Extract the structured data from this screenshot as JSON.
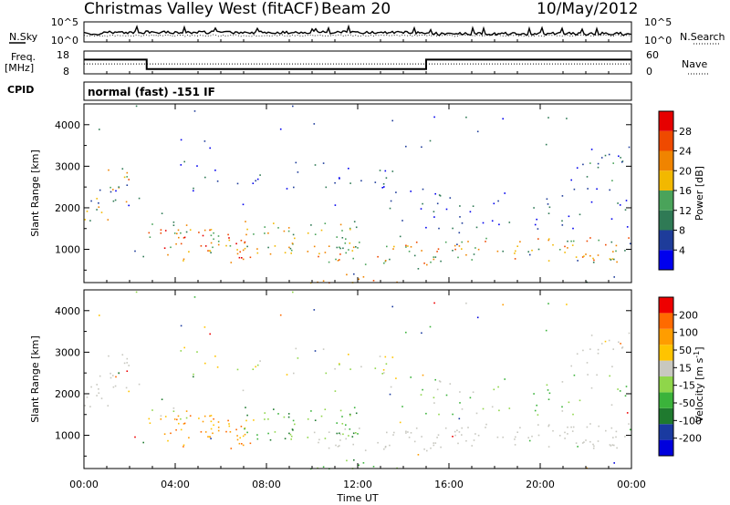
{
  "header": {
    "station": "Christmas Valley West (fitACF)",
    "beam": "Beam 20",
    "date": "10/May/2012"
  },
  "left_labels": {
    "nsky": "N.Sky",
    "freq_line1": "Freq.",
    "freq_line2": "[MHz]",
    "cpid": "CPID"
  },
  "right_labels": {
    "nsearch": "N.Search",
    "nave": "Nave"
  },
  "cpid_text": "normal (fast) -151 IF",
  "colors": {
    "power_scale": [
      "#0000ee",
      "#1e3c9a",
      "#2f7a55",
      "#4aa35a",
      "#f2b800",
      "#f08400",
      "#ef4a00",
      "#e60000"
    ],
    "velocity_scale": [
      "#ee0000",
      "#ff6a00",
      "#ff9d00",
      "#ffc400",
      "#c8c8c0",
      "#8fd64a",
      "#3bb33b",
      "#1f7a2f",
      "#1a3aa0",
      "#0000dd"
    ]
  },
  "chart_data": [
    {
      "type": "line",
      "title": "",
      "series": [
        {
          "name": "N.Sky"
        },
        {
          "name": "N.Search"
        }
      ],
      "ylabel_left": "N.Sky",
      "ylabel_right": "N.Search",
      "y_ticks_left": [
        "10^5",
        "10^0"
      ],
      "y_ticks_right": [
        "10^5",
        "10^0"
      ],
      "scale": "log",
      "x_range_hours": [
        0,
        24
      ]
    },
    {
      "type": "line",
      "ylabel_left": "Freq. [MHz]",
      "ylabel_right": "Nave",
      "y_ticks_left": [
        "18",
        "8"
      ],
      "y_ticks_right": [
        "60",
        "0"
      ],
      "freq_mhz_segments": [
        {
          "start": "00:00",
          "end": "02:45",
          "value": 14.5
        },
        {
          "start": "02:45",
          "end": "15:00",
          "value": 9.5
        },
        {
          "start": "15:00",
          "end": "24:00",
          "value": 14.5
        }
      ],
      "nave_value": 26
    },
    {
      "type": "heatmap",
      "quantity": "Power",
      "unit": "dB",
      "colorbar_label": "Power [dB]",
      "colorbar_ticks": [
        "4",
        "8",
        "12",
        "16",
        "20",
        "24",
        "28"
      ],
      "colorbar_range": [
        0,
        32
      ],
      "ylabel": "Slant Range [km]",
      "y_ticks": [
        "1000",
        "2000",
        "3000",
        "4000"
      ],
      "y_range_km": [
        200,
        4500
      ]
    },
    {
      "type": "heatmap",
      "quantity": "Velocity",
      "unit": "m s^-1",
      "colorbar_label": "Velocity [m s",
      "colorbar_label_sup": "-1",
      "colorbar_label_end": "]",
      "colorbar_ticks": [
        "200",
        "100",
        "50",
        "15",
        "-15",
        "-50",
        "-100",
        "-200"
      ],
      "ylabel": "Slant Range [km]",
      "y_ticks": [
        "1000",
        "2000",
        "3000",
        "4000"
      ],
      "y_range_km": [
        200,
        4500
      ]
    }
  ],
  "x_axis": {
    "label": "Time UT",
    "ticks": [
      "00:00",
      "04:00",
      "08:00",
      "12:00",
      "16:00",
      "20:00",
      "00:00"
    ]
  }
}
